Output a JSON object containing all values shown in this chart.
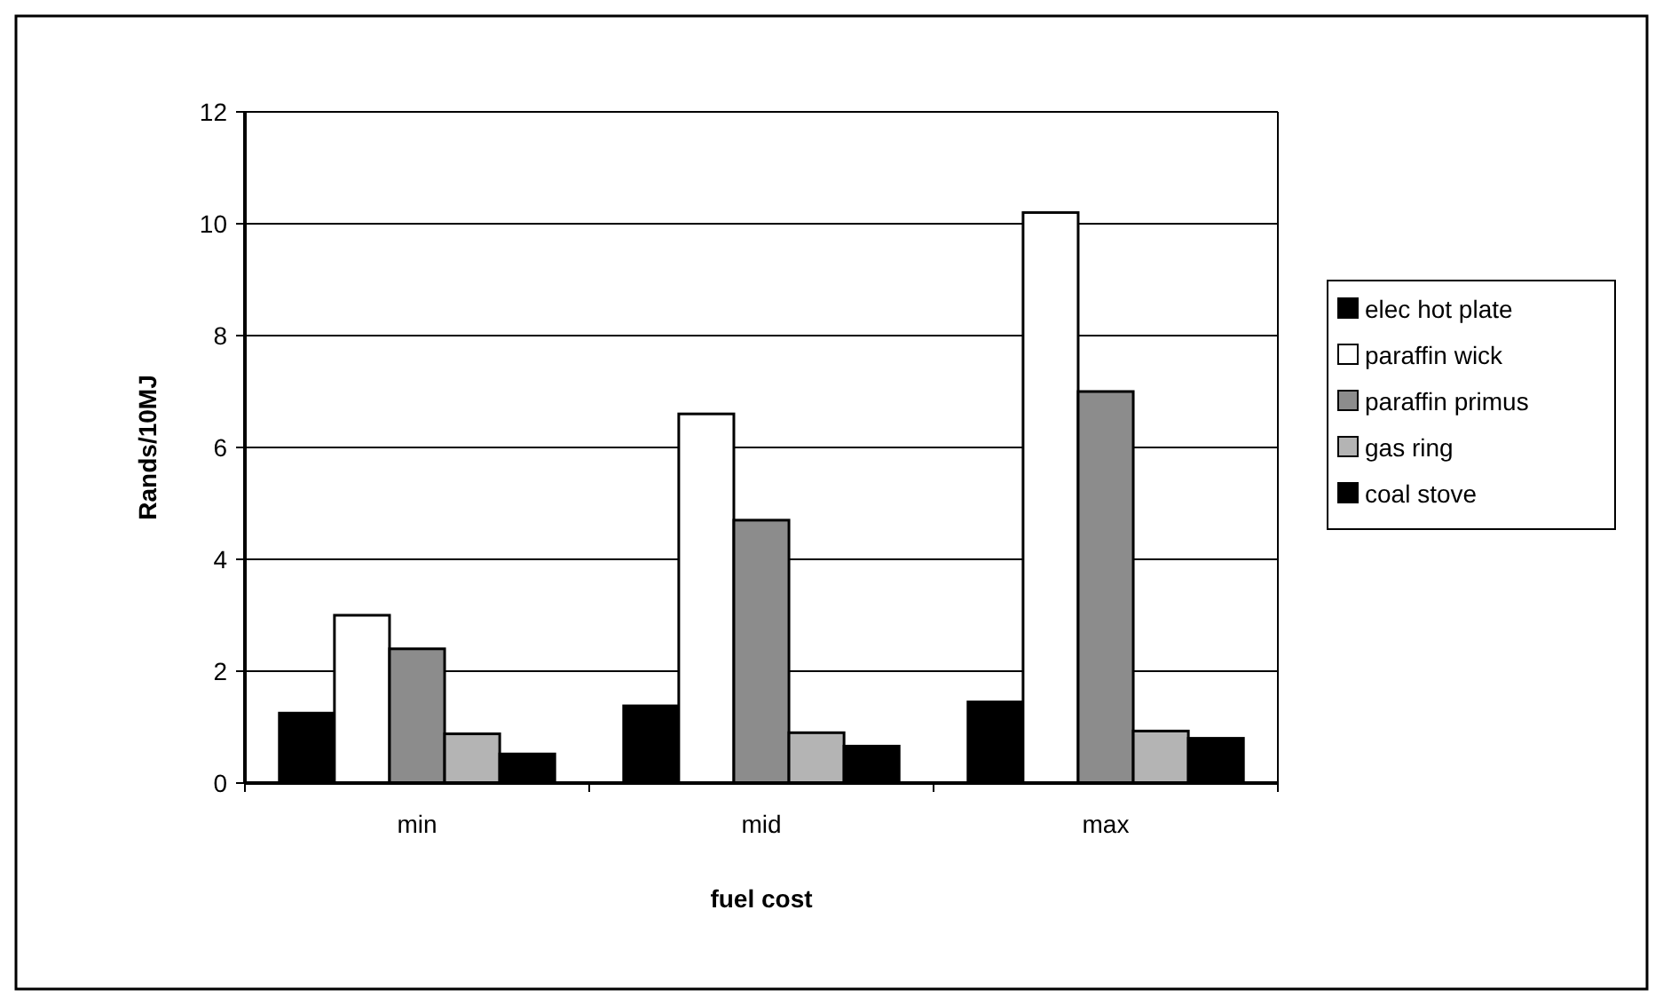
{
  "chart_data": {
    "type": "bar",
    "xlabel": "fuel cost",
    "ylabel": "Rands/10MJ",
    "categories": [
      "min",
      "mid",
      "max"
    ],
    "series": [
      {
        "name": "elec hot plate",
        "color": "#000000",
        "values": [
          1.25,
          1.38,
          1.45
        ]
      },
      {
        "name": "paraffin wick",
        "color": "#ffffff",
        "values": [
          3.0,
          6.6,
          10.2
        ]
      },
      {
        "name": "paraffin primus",
        "color": "#8c8c8c",
        "values": [
          2.4,
          4.7,
          7.0
        ]
      },
      {
        "name": "gas ring",
        "color": "#b4b4b4",
        "values": [
          0.88,
          0.9,
          0.93
        ]
      },
      {
        "name": "coal stove",
        "color": "#000000",
        "values": [
          0.52,
          0.66,
          0.8
        ]
      }
    ],
    "ylim": [
      0,
      12
    ],
    "yticks": [
      0,
      2,
      4,
      6,
      8,
      10,
      12
    ],
    "grid": "y",
    "legend": "right"
  }
}
